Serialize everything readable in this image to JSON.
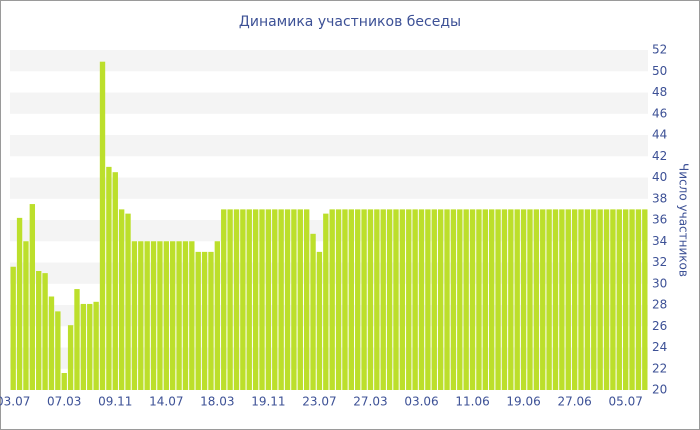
{
  "chart_data": {
    "type": "bar",
    "title": "Динамика участников беседы",
    "y_label": "Число участников",
    "categories": [
      "03.07",
      null,
      null,
      null,
      null,
      null,
      null,
      null,
      "07.03",
      null,
      null,
      null,
      null,
      null,
      null,
      null,
      "09.11",
      null,
      null,
      null,
      null,
      null,
      null,
      null,
      "14.07",
      null,
      null,
      null,
      null,
      null,
      null,
      null,
      "18.03",
      null,
      null,
      null,
      null,
      null,
      null,
      null,
      "19.11",
      null,
      null,
      null,
      null,
      null,
      null,
      null,
      "23.07",
      null,
      null,
      null,
      null,
      null,
      null,
      null,
      "27.03",
      null,
      null,
      null,
      null,
      null,
      null,
      null,
      "03.06",
      null,
      null,
      null,
      null,
      null,
      null,
      null,
      "11.06",
      null,
      null,
      null,
      null,
      null,
      null,
      null,
      "19.06",
      null,
      null,
      null,
      null,
      null,
      null,
      null,
      "27.06",
      null,
      null,
      null,
      null,
      null,
      null,
      null,
      "05.07",
      null,
      null,
      null
    ],
    "values": [
      31.6,
      36.2,
      34,
      37.5,
      31.2,
      31,
      28.8,
      27.4,
      21.6,
      26.1,
      29.5,
      28.1,
      28.1,
      28.3,
      50.9,
      41,
      40.5,
      37,
      36.6,
      34,
      34,
      34,
      34,
      34,
      34,
      34,
      34,
      34,
      34,
      33,
      33,
      33,
      34,
      37,
      37,
      37,
      37,
      37,
      37,
      37,
      37,
      37,
      37,
      37,
      37,
      37,
      37,
      34.7,
      33,
      36.6,
      37,
      37,
      37,
      37,
      37,
      37,
      37,
      37,
      37,
      37,
      37,
      37,
      37,
      37,
      37,
      37,
      37,
      37,
      37,
      37,
      37,
      37,
      37,
      37,
      37,
      37,
      37,
      37,
      37,
      37,
      37,
      37,
      37,
      37,
      37,
      37,
      37,
      37,
      37,
      37,
      37,
      37,
      37,
      37,
      37,
      37,
      37,
      37,
      37,
      37
    ],
    "color": "#bcdf2b",
    "ylim": [
      20,
      52
    ],
    "yticks": [
      20,
      22,
      24,
      26,
      28,
      30,
      32,
      34,
      36,
      38,
      40,
      42,
      44,
      46,
      48,
      50,
      52
    ],
    "grid": true,
    "y_axis_side": "right"
  }
}
